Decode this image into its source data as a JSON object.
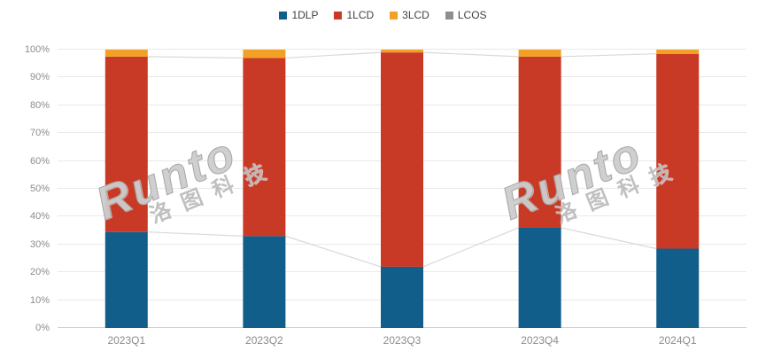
{
  "chart_data": {
    "type": "bar",
    "stacked": true,
    "percent": true,
    "title": "",
    "xlabel": "",
    "ylabel": "",
    "categories": [
      "2023Q1",
      "2023Q2",
      "2023Q3",
      "2023Q4",
      "2024Q1"
    ],
    "series": [
      {
        "name": "1DLP",
        "color": "#115e8b",
        "values": [
          34.5,
          33,
          22,
          36,
          28.5
        ]
      },
      {
        "name": "1LCD",
        "color": "#c93a26",
        "values": [
          63,
          64,
          77,
          61.5,
          70
        ]
      },
      {
        "name": "3LCD",
        "color": "#f2a126",
        "values": [
          2.5,
          3,
          1,
          2.5,
          1.5
        ]
      },
      {
        "name": "LCOS",
        "color": "#8f8f8f",
        "values": [
          0,
          0,
          0,
          0,
          0
        ]
      }
    ],
    "ylim": [
      0,
      100
    ],
    "ytick_step": 10,
    "ytick_labels": [
      "0%",
      "10%",
      "20%",
      "30%",
      "40%",
      "50%",
      "60%",
      "70%",
      "80%",
      "90%",
      "100%"
    ],
    "grid": true,
    "legend_position": "top",
    "connector_lines": true
  },
  "legend": {
    "items": [
      {
        "label": "1DLP"
      },
      {
        "label": "1LCD"
      },
      {
        "label": "3LCD"
      },
      {
        "label": "LCOS"
      }
    ]
  },
  "watermark": {
    "brand": "Runto",
    "cjk": "洛图科技"
  },
  "colors": {
    "background": "#ffffff",
    "grid_line": "#e9e9e9",
    "axis_line": "#d0d0d0",
    "connector_line": "#d9d9d9",
    "tick_text": "#8c8c8c",
    "legend_text": "#3f3f3f"
  }
}
